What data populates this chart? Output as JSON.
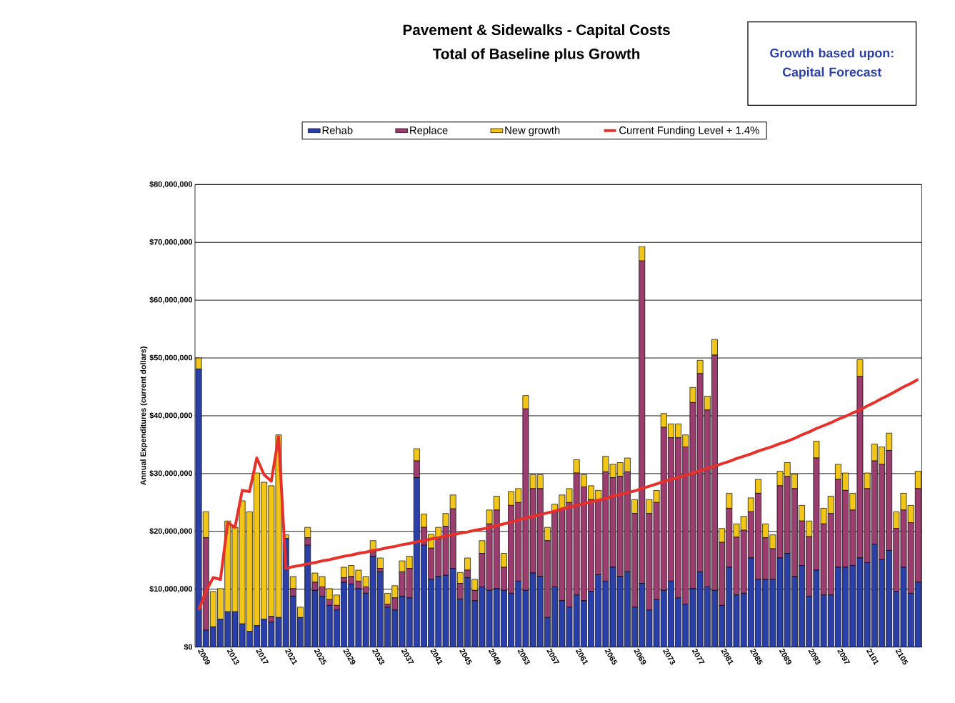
{
  "chart_data": {
    "type": "bar",
    "stacked": true,
    "title": "Pavement & Sidewalks - Capital Costs",
    "subtitle": "Total of Baseline plus Growth",
    "ylabel": "Annual Expenditures (current dollars)",
    "annotations": [
      "Growth based upon: Capital Forecast"
    ],
    "categories": [
      "2009",
      null,
      null,
      null,
      "2013",
      null,
      null,
      null,
      "2017",
      null,
      null,
      null,
      "2021",
      null,
      null,
      null,
      "2025",
      null,
      null,
      null,
      "2029",
      null,
      null,
      null,
      "2033",
      null,
      null,
      null,
      "2037",
      null,
      null,
      null,
      "2041",
      null,
      null,
      null,
      "2045",
      null,
      null,
      null,
      "2049",
      null,
      null,
      null,
      "2053",
      null,
      null,
      null,
      "2057",
      null,
      null,
      null,
      "2061",
      null,
      null,
      null,
      "2065",
      null,
      null,
      null,
      "2069",
      null,
      null,
      null,
      "2073",
      null,
      null,
      null,
      "2077",
      null,
      null,
      null,
      "2081",
      null,
      null,
      null,
      "2085",
      null,
      null,
      null,
      "2089",
      null,
      null,
      null,
      "2093",
      null,
      null,
      null,
      "2097",
      null,
      null,
      null,
      "2101",
      null,
      null,
      null,
      "2105",
      null,
      null,
      null
    ],
    "series": [
      {
        "name": "Rehab",
        "color": "#2b3fa8",
        "values": [
          48100000.0,
          2900000.0,
          3500000.0,
          4800000.0,
          6100000.0,
          6100000.0,
          4000000.0,
          2700000.0,
          3700000.0,
          4800000.0,
          4300000.0,
          5100000.0,
          18800000.0,
          8800000.0,
          5100000.0,
          17600000.0,
          9800000.0,
          8800000.0,
          7200000.0,
          6400000.0,
          11200000.0,
          10900000.0,
          10100000.0,
          9300000.0,
          15700000.0,
          13000000.0,
          6900000.0,
          6400000.0,
          8800000.0,
          8500000.0,
          29300000.0,
          17600000.0,
          11700000.0,
          12200000.0,
          12400000.0,
          13600000.0,
          8300000.0,
          12000000.0,
          8000000.0,
          10400000.0,
          9800000.0,
          10100000.0,
          9800000.0,
          9300000.0,
          11400000.0,
          9800000.0,
          12800000.0,
          12200000.0,
          5100000.0,
          10400000.0,
          8000000.0,
          6900000.0,
          9000000.0,
          8000000.0,
          9600000.0,
          12500000.0,
          11400000.0,
          13800000.0,
          12200000.0,
          13000000.0,
          6900000.0,
          11000000.0,
          6400000.0,
          8200000.0,
          9800000.0,
          11400000.0,
          8500000.0,
          7400000.0,
          10100000.0,
          13000000.0,
          10400000.0,
          9800000.0,
          7200000.0,
          13800000.0,
          9000000.0,
          9300000.0,
          15400000.0,
          11700000.0,
          11700000.0,
          11700000.0,
          15400000.0,
          16200000.0,
          12200000.0,
          14100000.0,
          8800000.0,
          13300000.0,
          9000000.0,
          9000000.0,
          13800000.0,
          13800000.0,
          14100000.0,
          15400000.0,
          14600000.0,
          17800000.0,
          15100000.0,
          16700000.0,
          9600000.0,
          13800000.0,
          9300000.0,
          11200000.0
        ]
      },
      {
        "name": "Replace",
        "color": "#9b3d6e",
        "values": [
          0,
          16000000.0,
          0,
          0,
          0,
          0,
          0,
          0,
          0,
          0,
          1000000.0,
          0,
          0,
          1300000.0,
          0,
          1300000.0,
          1400000.0,
          1600000.0,
          1000000.0,
          800000.0,
          800000.0,
          1300000.0,
          1300000.0,
          1100000.0,
          800000.0,
          600000.0,
          500000.0,
          2100000.0,
          4200000.0,
          5100000.0,
          2900000.0,
          3100000.0,
          5400000.0,
          6500000.0,
          8500000.0,
          10300000.0,
          2700000.0,
          1300000.0,
          1800000.0,
          5800000.0,
          11500000.0,
          13600000.0,
          4000000.0,
          15200000.0,
          13600000.0,
          31400000.0,
          14600000.0,
          15200000.0,
          13300000.0,
          13000000.0,
          15900000.0,
          18100000.0,
          21100000.0,
          19700000.0,
          15900000.0,
          13000000.0,
          18900000.0,
          15500000.0,
          17300000.0,
          17300000.0,
          16200000.0,
          55800000.0,
          16700000.0,
          16800000.0,
          28200000.0,
          24800000.0,
          27700000.0,
          27200000.0,
          32200000.0,
          34300000.0,
          30600000.0,
          40700000.0,
          10900000.0,
          10200000.0,
          10000000.0,
          10900000.0,
          8000000.0,
          14900000.0,
          7200000.0,
          5300000.0,
          12500000.0,
          13300000.0,
          15200000.0,
          7700000.0,
          10300000.0,
          19400000.0,
          12300000.0,
          14100000.0,
          15200000.0,
          13300000.0,
          9600000.0,
          31400000.0,
          12800000.0,
          14400000.0,
          16500000.0,
          17300000.0,
          10900000.0,
          9900000.0,
          12200000.0,
          16200000.0
        ]
      },
      {
        "name": "New growth",
        "color": "#f2c618",
        "values": [
          1900000.0,
          4500000.0,
          6100000.0,
          5300000.0,
          15700000.0,
          14600000.0,
          21300000.0,
          20700000.0,
          26400000.0,
          23700000.0,
          22600000.0,
          31600000.0,
          600000.0,
          2100000.0,
          1800000.0,
          1800000.0,
          1600000.0,
          1800000.0,
          1900000.0,
          1800000.0,
          1800000.0,
          1900000.0,
          1900000.0,
          1800000.0,
          1900000.0,
          1800000.0,
          1900000.0,
          2100000.0,
          1900000.0,
          2100000.0,
          2100000.0,
          2300000.0,
          2400000.0,
          2000000.0,
          2200000.0,
          2400000.0,
          1900000.0,
          2100000.0,
          1900000.0,
          2200000.0,
          2400000.0,
          2400000.0,
          2400000.0,
          2400000.0,
          2400000.0,
          2300000.0,
          2400000.0,
          2400000.0,
          2300000.0,
          1300000.0,
          2400000.0,
          2400000.0,
          2300000.0,
          2100000.0,
          2400000.0,
          1600000.0,
          2700000.0,
          2300000.0,
          2400000.0,
          2400000.0,
          2400000.0,
          2500000.0,
          2400000.0,
          2100000.0,
          2400000.0,
          2400000.0,
          2400000.0,
          2100000.0,
          2600000.0,
          2300000.0,
          2400000.0,
          2700000.0,
          2400000.0,
          2600000.0,
          2300000.0,
          2400000.0,
          2400000.0,
          2400000.0,
          2400000.0,
          2400000.0,
          2500000.0,
          2400000.0,
          2500000.0,
          2700000.0,
          2700000.0,
          2900000.0,
          2700000.0,
          3000000.0,
          2600000.0,
          3000000.0,
          2900000.0,
          2900000.0,
          2700000.0,
          2900000.0,
          3000000.0,
          3000000.0,
          2900000.0,
          2900000.0,
          3000000.0,
          3000000.0
        ]
      },
      {
        "name": "Current Funding Level + 1.4%",
        "type": "line",
        "color": "#e8302a",
        "values": [
          6400000.0,
          9600000.0,
          12000000.0,
          11700000.0,
          21500000.0,
          20700000.0,
          27100000.0,
          26900000.0,
          32700000.0,
          29800000.0,
          28700000.0,
          36400000.0,
          13600000.0,
          13900000.0,
          14100000.0,
          14400000.0,
          14600000.0,
          14900000.0,
          15100000.0,
          15400000.0,
          15700000.0,
          15900000.0,
          16200000.0,
          16400000.0,
          16700000.0,
          16900000.0,
          17200000.0,
          17400000.0,
          17700000.0,
          17900000.0,
          18200000.0,
          18400000.0,
          18700000.0,
          18900000.0,
          19200000.0,
          19400000.0,
          19700000.0,
          19900000.0,
          20200000.0,
          20400000.0,
          20700000.0,
          21000000.0,
          21300000.0,
          21600000.0,
          22000000.0,
          22300000.0,
          22600000.0,
          22900000.0,
          23200000.0,
          23500000.0,
          23900000.0,
          24200000.0,
          24500000.0,
          24800000.0,
          25100000.0,
          25400000.0,
          25700000.0,
          26100000.0,
          26400000.0,
          26700000.0,
          27000000.0,
          27400000.0,
          27800000.0,
          28200000.0,
          28600000.0,
          29000000.0,
          29300000.0,
          29700000.0,
          30100000.0,
          30500000.0,
          30900000.0,
          31300000.0,
          31700000.0,
          32100000.0,
          32600000.0,
          33000000.0,
          33400000.0,
          33900000.0,
          34300000.0,
          34700000.0,
          35200000.0,
          35600000.0,
          36100000.0,
          36700000.0,
          37200000.0,
          37800000.0,
          38300000.0,
          38800000.0,
          39400000.0,
          39900000.0,
          40500000.0,
          41000000.0,
          41700000.0,
          42300000.0,
          43000000.0,
          43600000.0,
          44300000.0,
          45000000.0,
          45600000.0,
          46300000.0
        ]
      }
    ],
    "ylim": [
      0,
      80000000
    ],
    "yticks": [
      {
        "value": 0,
        "label": "$0"
      },
      {
        "value": 10000000,
        "label": "$10,000,000"
      },
      {
        "value": 20000000,
        "label": "$20,000,000"
      },
      {
        "value": 30000000,
        "label": "$30,000,000"
      },
      {
        "value": 40000000,
        "label": "$40,000,000"
      },
      {
        "value": 50000000,
        "label": "$50,000,000"
      },
      {
        "value": 60000000,
        "label": "$60,000,000"
      },
      {
        "value": 70000000,
        "label": "$70,000,000"
      },
      {
        "value": 80000000,
        "label": "$80,000,000"
      }
    ],
    "grid": "y",
    "legend": "top"
  }
}
